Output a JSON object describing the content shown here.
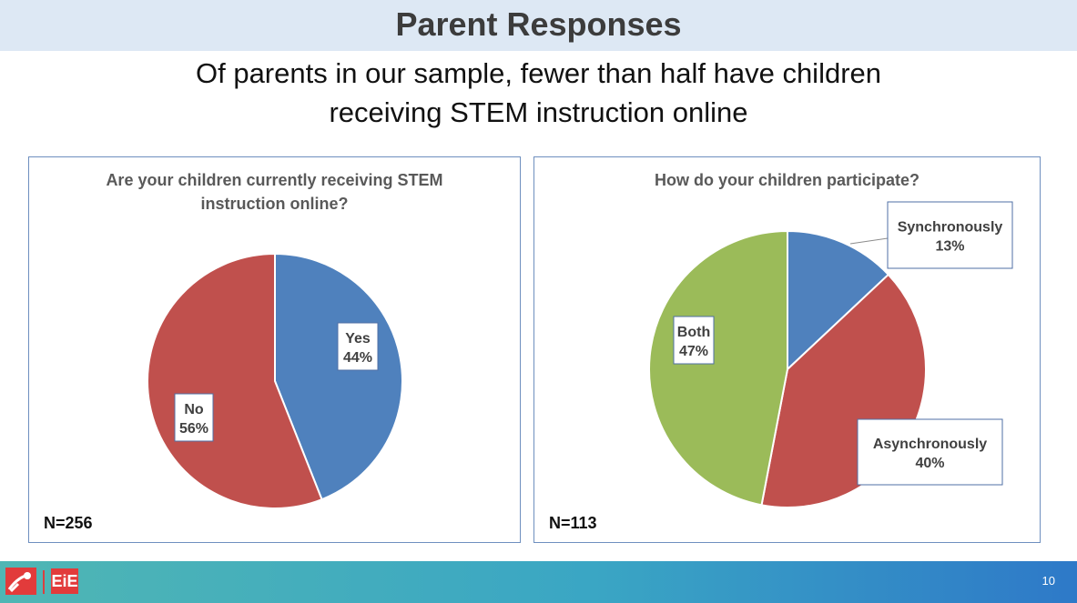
{
  "slide": {
    "title": "Parent Responses",
    "subtitle_line1": "Of parents in our sample, fewer than half have children",
    "subtitle_line2": "receiving STEM instruction online",
    "page_number": "10",
    "logo_text": "EiE"
  },
  "chart_data": [
    {
      "type": "pie",
      "title_line1": "Are your children currently receiving STEM",
      "title_line2": "instruction online?",
      "n_label": "N=256",
      "categories": [
        "Yes",
        "No"
      ],
      "values": [
        44,
        56
      ],
      "value_labels": [
        "44%",
        "56%"
      ],
      "colors": [
        "#4f81bd",
        "#c0504d"
      ]
    },
    {
      "type": "pie",
      "title_line1": "How do your children participate?",
      "n_label": "N=113",
      "categories": [
        "Synchronously",
        "Asynchronously",
        "Both"
      ],
      "values": [
        13,
        40,
        47
      ],
      "value_labels": [
        "13%",
        "40%",
        "47%"
      ],
      "colors": [
        "#4f81bd",
        "#c0504d",
        "#9bbb59"
      ]
    }
  ]
}
